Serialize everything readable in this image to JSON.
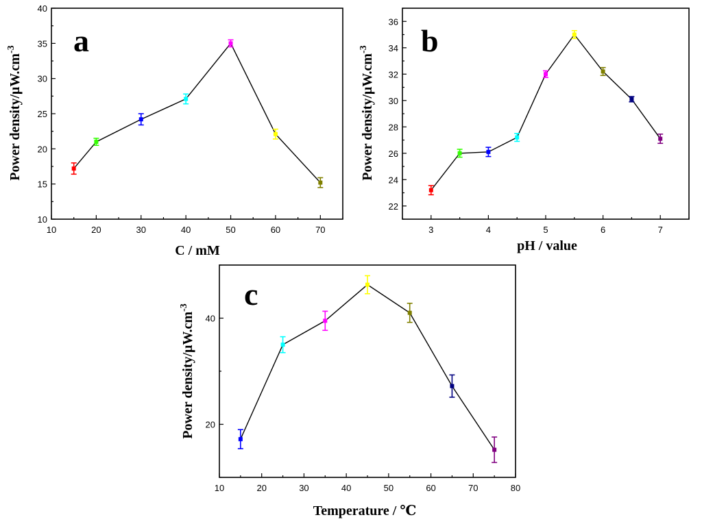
{
  "chart_data": [
    {
      "panel": "a",
      "type": "line",
      "x": [
        15,
        20,
        30,
        40,
        50,
        60,
        70
      ],
      "y": [
        17.2,
        21.0,
        24.2,
        27.1,
        35.0,
        22.1,
        15.2
      ],
      "err": [
        0.8,
        0.5,
        0.8,
        0.7,
        0.5,
        0.7,
        0.7
      ],
      "colors": [
        "#ff0000",
        "#33ff00",
        "#0000ff",
        "#00ffff",
        "#ff00ff",
        "#ffff00",
        "#808000"
      ],
      "xlabel": "C / mM",
      "ylabel": "Power density/μW.cm",
      "ylabel_sup": "-3",
      "xlim": [
        10,
        75
      ],
      "ylim": [
        10,
        40
      ],
      "xticks": [
        10,
        20,
        30,
        40,
        50,
        60,
        70
      ],
      "yticks": [
        10,
        15,
        20,
        25,
        30,
        35,
        40
      ]
    },
    {
      "panel": "b",
      "type": "line",
      "x": [
        3,
        3.5,
        4,
        4.5,
        5,
        5.5,
        6,
        6.5,
        7
      ],
      "y": [
        23.2,
        26.0,
        26.1,
        27.2,
        32.0,
        35.0,
        32.2,
        30.1,
        27.1
      ],
      "err": [
        0.35,
        0.3,
        0.35,
        0.3,
        0.25,
        0.3,
        0.3,
        0.2,
        0.35
      ],
      "colors": [
        "#ff0000",
        "#33ff00",
        "#0000ff",
        "#00ffff",
        "#ff00ff",
        "#ffff00",
        "#808000",
        "#000080",
        "#800080"
      ],
      "xlabel": "pH / value",
      "ylabel": "Power density/μW.cm",
      "ylabel_sup": "-3",
      "xlim": [
        2.5,
        7.5
      ],
      "ylim": [
        21,
        37
      ],
      "xticks": [
        3,
        4,
        5,
        6,
        7
      ],
      "yticks": [
        22,
        24,
        26,
        28,
        30,
        32,
        34,
        36
      ]
    },
    {
      "panel": "c",
      "type": "line",
      "x": [
        15,
        25,
        35,
        45,
        55,
        65,
        75
      ],
      "y": [
        17.2,
        35.0,
        39.5,
        46.3,
        41.0,
        27.2,
        15.2
      ],
      "err": [
        1.8,
        1.5,
        1.8,
        1.7,
        1.8,
        2.1,
        2.4
      ],
      "colors": [
        "#0000ff",
        "#00ffff",
        "#ff00ff",
        "#ffff00",
        "#808000",
        "#000080",
        "#800080"
      ],
      "xlabel": "Temperature / ℃",
      "ylabel": "Power density/μW.cm",
      "ylabel_sup": "-3",
      "xlim": [
        10,
        80
      ],
      "ylim": [
        10,
        50
      ],
      "xticks": [
        10,
        20,
        30,
        40,
        50,
        60,
        70,
        80
      ],
      "yticks": [
        20,
        40
      ]
    }
  ]
}
